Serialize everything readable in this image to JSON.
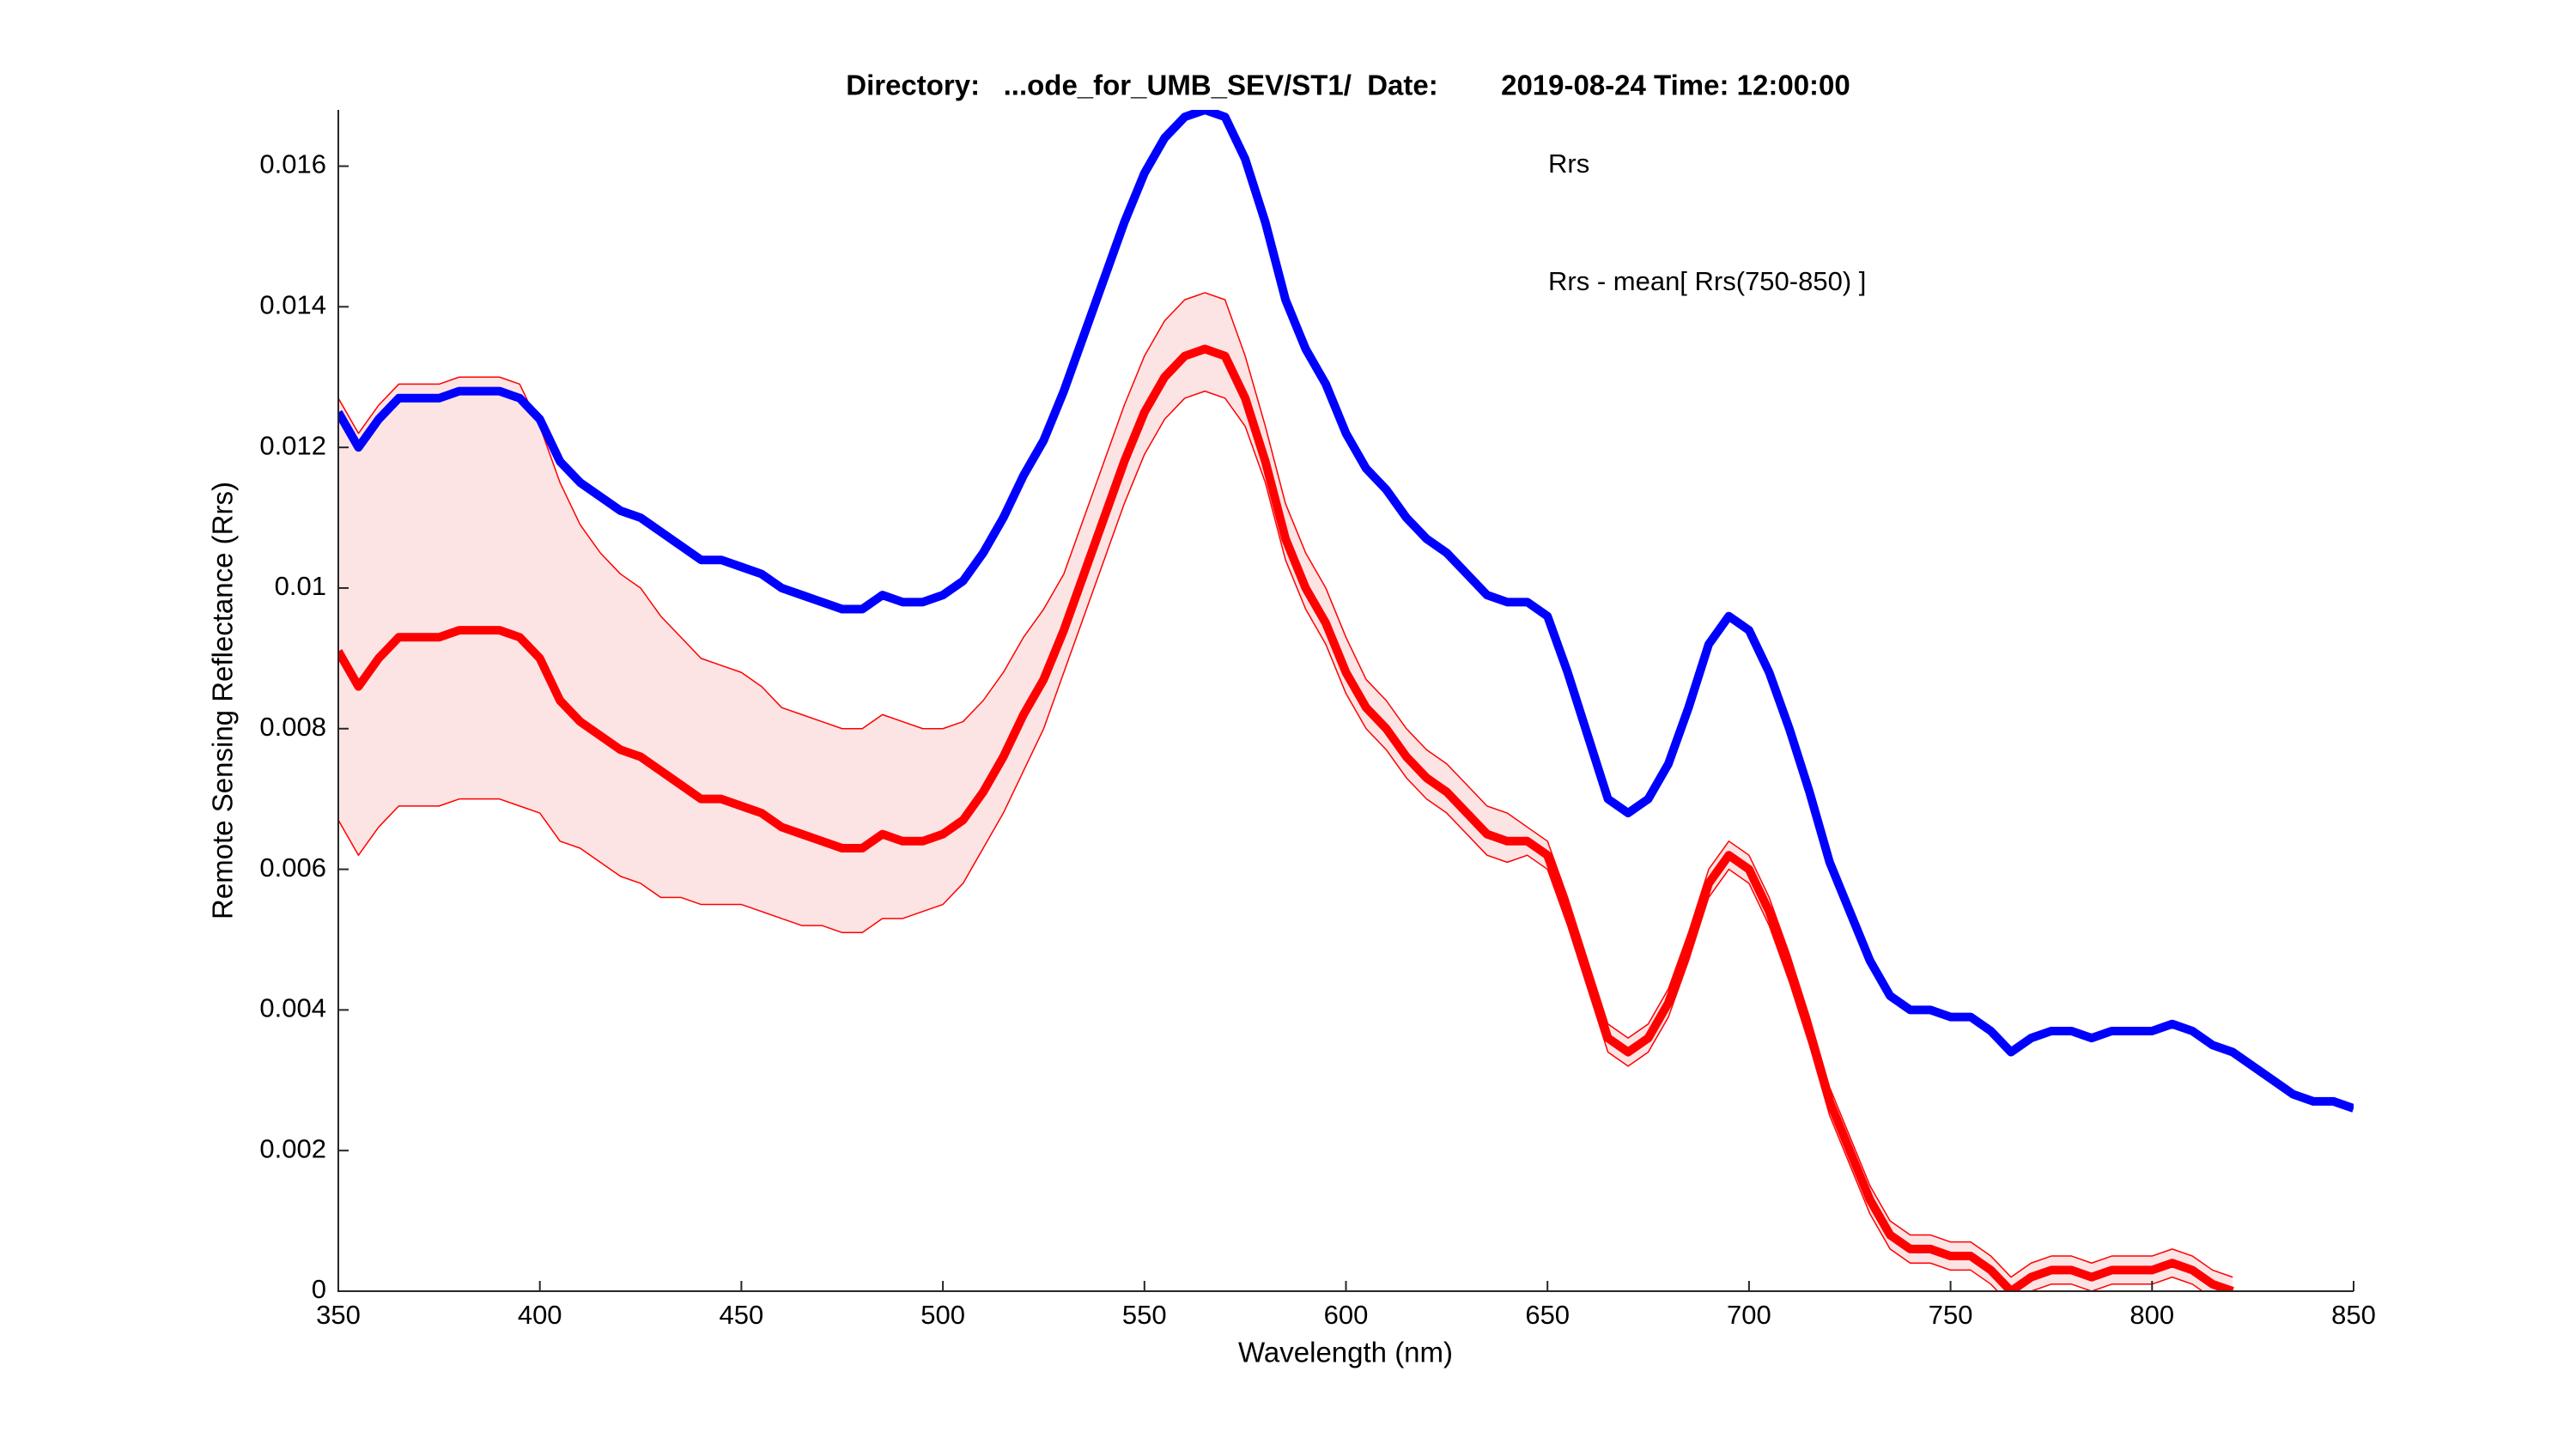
{
  "chart_data": {
    "type": "line",
    "title": "Directory:   ...ode_for_UMB_SEV/ST1/  Date:        2019-08-24 Time: 12:00:00",
    "x_label": "Wavelength (nm)",
    "y_label": "Remote Sensing Reflectance (Rrs)",
    "xlim": [
      350,
      850
    ],
    "xticks": [
      350,
      400,
      450,
      500,
      550,
      600,
      650,
      700,
      750,
      800,
      850
    ],
    "ylim": [
      0,
      0.0168
    ],
    "yticks": [
      0,
      0.002,
      0.004,
      0.006,
      0.008,
      0.01,
      0.012,
      0.014,
      0.016
    ],
    "grid": false,
    "legend": "upper right",
    "band_color": "#fde4e4",
    "x": [
      350,
      355,
      360,
      365,
      370,
      375,
      380,
      385,
      390,
      395,
      400,
      405,
      410,
      415,
      420,
      425,
      430,
      435,
      440,
      445,
      450,
      455,
      460,
      465,
      470,
      475,
      480,
      485,
      490,
      495,
      500,
      505,
      510,
      515,
      520,
      525,
      530,
      535,
      540,
      545,
      550,
      555,
      560,
      565,
      570,
      575,
      580,
      585,
      590,
      595,
      600,
      605,
      610,
      615,
      620,
      625,
      630,
      635,
      640,
      645,
      650,
      655,
      660,
      665,
      670,
      675,
      680,
      685,
      690,
      695,
      700,
      705,
      710,
      715,
      720,
      725,
      730,
      735,
      740,
      745,
      750,
      755,
      760,
      765,
      770,
      775,
      780,
      785,
      790,
      795,
      800,
      805,
      810,
      815,
      820,
      825,
      830,
      835,
      840,
      845,
      850
    ],
    "series": [
      {
        "name": "Rrs",
        "color": "#0000ff",
        "style": "thick",
        "values": [
          0.0125,
          0.012,
          0.0124,
          0.0127,
          0.0127,
          0.0127,
          0.0128,
          0.0128,
          0.0128,
          0.0127,
          0.0124,
          0.0118,
          0.0115,
          0.0113,
          0.0111,
          0.011,
          0.0108,
          0.0106,
          0.0104,
          0.0104,
          0.0103,
          0.0102,
          0.01,
          0.0099,
          0.0098,
          0.0097,
          0.0097,
          0.0099,
          0.0098,
          0.0098,
          0.0099,
          0.0101,
          0.0105,
          0.011,
          0.0116,
          0.0121,
          0.0128,
          0.0136,
          0.0144,
          0.0152,
          0.0159,
          0.0164,
          0.0167,
          0.0168,
          0.0167,
          0.0161,
          0.0152,
          0.0141,
          0.0134,
          0.0129,
          0.0122,
          0.0117,
          0.0114,
          0.011,
          0.0107,
          0.0105,
          0.0102,
          0.0099,
          0.0098,
          0.0098,
          0.0096,
          0.0088,
          0.0079,
          0.007,
          0.0068,
          0.007,
          0.0075,
          0.0083,
          0.0092,
          0.0096,
          0.0094,
          0.0088,
          0.008,
          0.0071,
          0.0061,
          0.0054,
          0.0047,
          0.0042,
          0.004,
          0.004,
          0.0039,
          0.0039,
          0.0037,
          0.0034,
          0.0036,
          0.0037,
          0.0037,
          0.0036,
          0.0037,
          0.0037,
          0.0037,
          0.0038,
          0.0037,
          0.0035,
          0.0034,
          0.0032,
          0.003,
          0.0028,
          0.0027,
          0.0027,
          0.0026
        ]
      },
      {
        "name": "Rrs - mean[ Rrs(750-850) ]",
        "color": "#ff0000",
        "style": "thick",
        "values": [
          0.0091,
          0.0086,
          0.009,
          0.0093,
          0.0093,
          0.0093,
          0.0094,
          0.0094,
          0.0094,
          0.0093,
          0.009,
          0.0084,
          0.0081,
          0.0079,
          0.0077,
          0.0076,
          0.0074,
          0.0072,
          0.007,
          0.007,
          0.0069,
          0.0068,
          0.0066,
          0.0065,
          0.0064,
          0.0063,
          0.0063,
          0.0065,
          0.0064,
          0.0064,
          0.0065,
          0.0067,
          0.0071,
          0.0076,
          0.0082,
          0.0087,
          0.0094,
          0.0102,
          0.011,
          0.0118,
          0.0125,
          0.013,
          0.0133,
          0.0134,
          0.0133,
          0.0127,
          0.0118,
          0.0107,
          0.01,
          0.0095,
          0.0088,
          0.0083,
          0.008,
          0.0076,
          0.0073,
          0.0071,
          0.0068,
          0.0065,
          0.0064,
          0.0064,
          0.0062,
          0.0054,
          0.0045,
          0.0036,
          0.0034,
          0.0036,
          0.0041,
          0.0049,
          0.0058,
          0.0062,
          0.006,
          0.0054,
          0.0046,
          0.0037,
          0.0027,
          0.002,
          0.0013,
          0.0008,
          0.0006,
          0.0006,
          0.0005,
          0.0005,
          0.0003,
          0.0,
          0.0002,
          0.0003,
          0.0003,
          0.0002,
          0.0003,
          0.0003,
          0.0003,
          0.0004,
          0.0003,
          0.0001,
          0.0,
          null,
          null,
          null,
          null,
          null,
          null
        ]
      },
      {
        "color": "#ff0000",
        "style": "band",
        "values": [
          0.0127,
          0.0122,
          0.0126,
          0.0129,
          0.0129,
          0.0129,
          0.013,
          0.013,
          0.013,
          0.0129,
          0.0123,
          0.0115,
          0.0109,
          0.0105,
          0.0102,
          0.01,
          0.0096,
          0.0093,
          0.009,
          0.0089,
          0.0088,
          0.0086,
          0.0083,
          0.0082,
          0.0081,
          0.008,
          0.008,
          0.0082,
          0.0081,
          0.008,
          0.008,
          0.0081,
          0.0084,
          0.0088,
          0.0093,
          0.0097,
          0.0102,
          0.011,
          0.0118,
          0.0126,
          0.0133,
          0.0138,
          0.0141,
          0.0142,
          0.0141,
          0.0133,
          0.0123,
          0.0112,
          0.0105,
          0.01,
          0.0093,
          0.0087,
          0.0084,
          0.008,
          0.0077,
          0.0075,
          0.0072,
          0.0069,
          0.0068,
          0.0066,
          0.0064,
          0.0056,
          0.0047,
          0.0038,
          0.0036,
          0.0038,
          0.0043,
          0.0051,
          0.006,
          0.0064,
          0.0062,
          0.0056,
          0.0048,
          0.0039,
          0.0029,
          0.0022,
          0.0015,
          0.001,
          0.0008,
          0.0008,
          0.0007,
          0.0007,
          0.0005,
          0.0002,
          0.0004,
          0.0005,
          0.0005,
          0.0004,
          0.0005,
          0.0005,
          0.0005,
          0.0006,
          0.0005,
          0.0003,
          0.0002,
          null,
          null,
          null,
          null,
          null,
          null
        ]
      },
      {
        "color": "#ff0000",
        "style": "band",
        "values": [
          0.0067,
          0.0062,
          0.0066,
          0.0069,
          0.0069,
          0.0069,
          0.007,
          0.007,
          0.007,
          0.0069,
          0.0068,
          0.0064,
          0.0063,
          0.0061,
          0.0059,
          0.0058,
          0.0056,
          0.0056,
          0.0055,
          0.0055,
          0.0055,
          0.0054,
          0.0053,
          0.0052,
          0.0052,
          0.0051,
          0.0051,
          0.0053,
          0.0053,
          0.0054,
          0.0055,
          0.0058,
          0.0063,
          0.0068,
          0.0074,
          0.008,
          0.0088,
          0.0096,
          0.0104,
          0.0112,
          0.0119,
          0.0124,
          0.0127,
          0.0128,
          0.0127,
          0.0123,
          0.0115,
          0.0104,
          0.0097,
          0.0092,
          0.0085,
          0.008,
          0.0077,
          0.0073,
          0.007,
          0.0068,
          0.0065,
          0.0062,
          0.0061,
          0.0062,
          0.006,
          0.0052,
          0.0043,
          0.0034,
          0.0032,
          0.0034,
          0.0039,
          0.0047,
          0.0056,
          0.006,
          0.0058,
          0.0052,
          0.0044,
          0.0035,
          0.0025,
          0.0018,
          0.0011,
          0.0006,
          0.0004,
          0.0004,
          0.0003,
          0.0003,
          0.0001,
          -0.0002,
          0.0,
          0.0001,
          0.0001,
          0.0,
          0.0001,
          0.0001,
          0.0001,
          0.0002,
          0.0001,
          -0.0001,
          -0.0002,
          null,
          null,
          null,
          null,
          null,
          null
        ]
      }
    ]
  }
}
